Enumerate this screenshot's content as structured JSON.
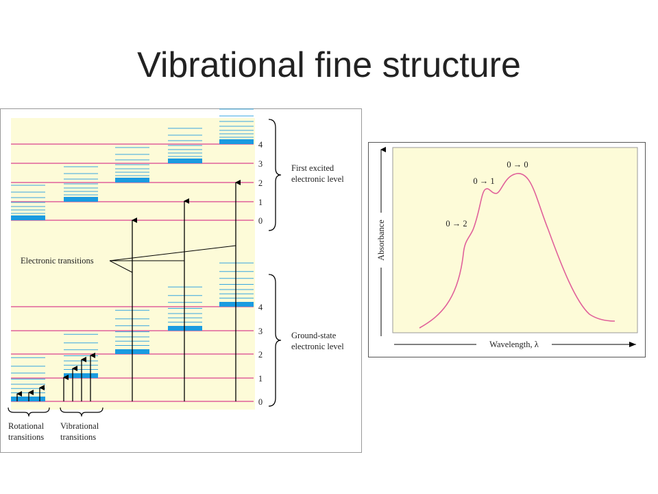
{
  "header": {
    "title": "Vibrational fine structure"
  },
  "energy_diagram": {
    "excited_levels": [
      "4",
      "3",
      "2",
      "1",
      "0"
    ],
    "excited_label": [
      "First excited",
      "electronic level"
    ],
    "ground_levels": [
      "4",
      "3",
      "2",
      "1",
      "0"
    ],
    "ground_label": [
      "Ground-state",
      "electronic level"
    ],
    "electronic_transitions": "Electronic transitions",
    "rotational_transitions": [
      "Rotational",
      "transitions"
    ],
    "vibrational_transitions": [
      "Vibrational",
      "transitions"
    ]
  },
  "spectrum": {
    "y_label": "Absorbance",
    "x_label": "Wavelength, λ",
    "peaks": [
      "0 → 0",
      "0 → 1",
      "0 → 2"
    ]
  }
}
